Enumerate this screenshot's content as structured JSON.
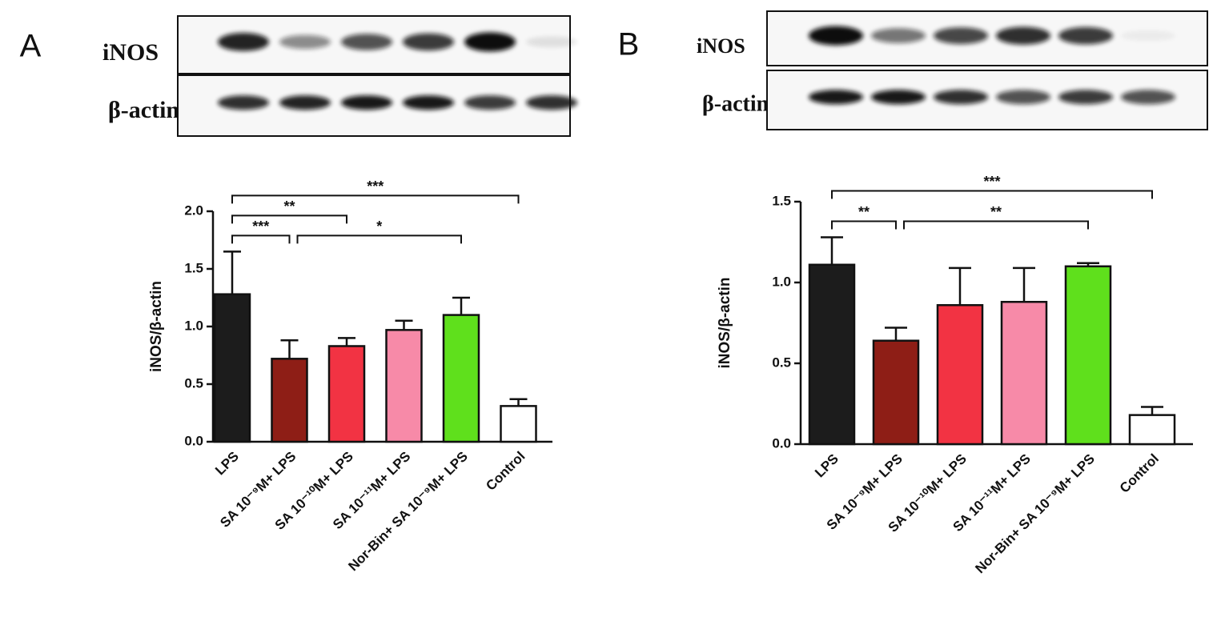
{
  "chart_data": [
    {
      "type": "bar",
      "panel": "A",
      "blot_labels": [
        "iNOS",
        "β-actin"
      ],
      "ylabel": "iNOS/β-actin",
      "categories": [
        "LPS",
        "SA 10⁻⁹M+ LPS",
        "SA 10⁻¹⁰M+ LPS",
        "SA 10⁻¹¹M+ LPS",
        "Nor-Bin+ SA 10⁻⁹M+ LPS",
        "Control"
      ],
      "values": [
        1.28,
        0.72,
        0.83,
        0.97,
        1.1,
        0.31
      ],
      "errors": [
        0.37,
        0.16,
        0.07,
        0.08,
        0.15,
        0.06
      ],
      "colors": [
        "#1c1c1c",
        "#8e1e16",
        "#f23343",
        "#f78aa8",
        "#5fe01c",
        "#ffffff"
      ],
      "ylim": [
        0,
        2
      ],
      "yticks": [
        {
          "value": 0,
          "label": "0.0"
        },
        0.5,
        {
          "value": 1,
          "label": "1.0"
        },
        1.5,
        {
          "value": 2,
          "label": "2.0"
        }
      ],
      "brackets": [
        {
          "from": "LPS",
          "to": "SA 10⁻⁹M+ LPS",
          "label": "***"
        },
        {
          "from": "SA 10⁻⁹M+ LPS",
          "to": "Nor-Bin+ SA 10⁻⁹M+ LPS",
          "label": "*"
        },
        {
          "from": "LPS",
          "to": "SA 10⁻¹⁰M+ LPS",
          "label": "**"
        },
        {
          "from": "LPS",
          "to": "Control",
          "label": "***"
        }
      ]
    },
    {
      "type": "bar",
      "panel": "B",
      "blot_labels": [
        "iNOS",
        "β-actin"
      ],
      "ylabel": "iNOS/β-actin",
      "categories": [
        "LPS",
        "SA 10⁻⁹M+ LPS",
        "SA 10⁻¹⁰M+ LPS",
        "SA 10⁻¹¹M+ LPS",
        "Nor-Bin+ SA 10⁻⁹M+ LPS",
        "Control"
      ],
      "values": [
        1.11,
        0.64,
        0.86,
        0.88,
        1.1,
        0.18
      ],
      "errors": [
        0.17,
        0.08,
        0.23,
        0.21,
        0.02,
        0.05
      ],
      "colors": [
        "#1c1c1c",
        "#8e1e16",
        "#f23343",
        "#f78aa8",
        "#5fe01c",
        "#ffffff"
      ],
      "ylim": [
        0,
        1.5
      ],
      "yticks": [
        {
          "value": 0,
          "label": "0.0"
        },
        0.5,
        {
          "value": 1,
          "label": "1.0"
        },
        1.5
      ],
      "brackets": [
        {
          "from": "LPS",
          "to": "SA 10⁻⁹M+ LPS",
          "label": "**"
        },
        {
          "from": "SA 10⁻⁹M+ LPS",
          "to": "Nor-Bin+ SA 10⁻⁹M+ LPS",
          "label": "**"
        },
        {
          "from": "LPS",
          "to": "Control",
          "label": "***"
        }
      ]
    }
  ]
}
